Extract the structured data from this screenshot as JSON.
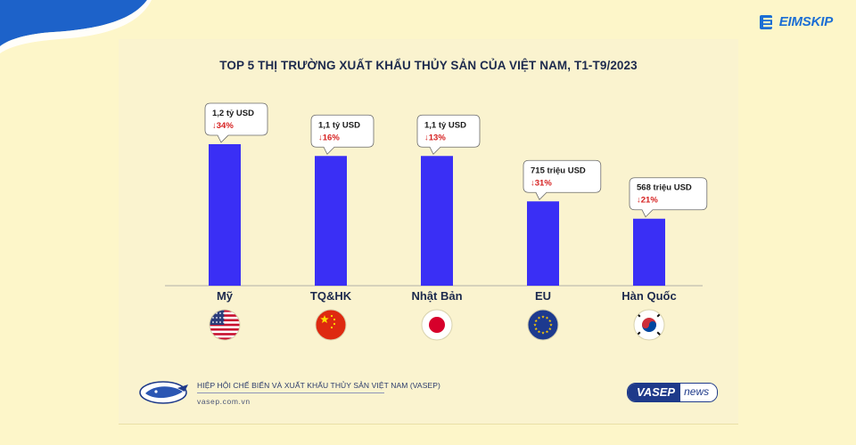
{
  "header": {
    "brand_text": "EIMSKIP",
    "brand_icon": "eimskip-e-icon",
    "brand_color": "#1c6ed4"
  },
  "chart_data": {
    "type": "bar",
    "title": "TOP 5 THỊ TRƯỜNG XUẤT KHẨU THỦY SẢN CỦA VIỆT NAM, T1-T9/2023",
    "xlabel": "",
    "ylabel": "",
    "unit": "tỷ USD",
    "categories": [
      "Mỹ",
      "TQ&HK",
      "Nhật Bản",
      "EU",
      "Hàn Quốc"
    ],
    "values": [
      1.2,
      1.1,
      1.1,
      0.715,
      0.568
    ],
    "ylim": [
      0,
      1.2
    ],
    "grid": false,
    "bar_color": "#3a2ff5",
    "value_labels": [
      "1,2 tỷ USD",
      "1,1 tỷ USD",
      "1,1 tỷ USD",
      "715 triệu USD",
      "568 triệu USD"
    ],
    "change_labels": [
      "↓34%",
      "↓16%",
      "↓13%",
      "↓31%",
      "↓21%"
    ],
    "change_color": "#d62020",
    "flags": [
      "us-flag-icon",
      "china-flag-icon",
      "japan-flag-icon",
      "eu-flag-icon",
      "korea-flag-icon"
    ]
  },
  "footer": {
    "org_name": "HIỆP HỘI CHẾ BIẾN VÀ XUẤT KHẨU THỦY SẢN VIỆT NAM (VASEP)",
    "url": "vasep.com.vn",
    "badge_main": "VASEP",
    "badge_news": "news",
    "logo_icon": "vasep-logo-icon"
  }
}
